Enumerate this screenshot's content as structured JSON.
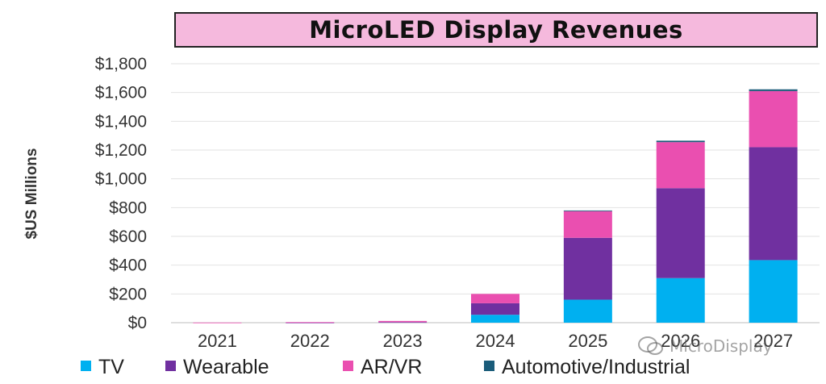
{
  "chart_data": {
    "type": "bar",
    "stacked": true,
    "title": "MicroLED Display Revenues",
    "xlabel": "",
    "ylabel": "$US Millions",
    "ylim": [
      0,
      1800
    ],
    "yticks": [
      0,
      200,
      400,
      600,
      800,
      1000,
      1200,
      1400,
      1600,
      1800
    ],
    "ytick_labels": [
      "$0",
      "$200",
      "$400",
      "$600",
      "$800",
      "$1,000",
      "$1,200",
      "$1,400",
      "$1,600",
      "$1,800"
    ],
    "categories": [
      "2021",
      "2022",
      "2023",
      "2024",
      "2025",
      "2026",
      "2027"
    ],
    "series": [
      {
        "name": "TV",
        "color": "#00b0f0",
        "values": [
          0,
          0,
          0,
          55,
          160,
          310,
          435
        ]
      },
      {
        "name": "Wearable",
        "color": "#7030a0",
        "values": [
          0,
          1,
          4,
          80,
          430,
          625,
          785
        ]
      },
      {
        "name": "AR/VR",
        "color": "#ea4fb0",
        "values": [
          1,
          3,
          8,
          65,
          185,
          320,
          390
        ]
      },
      {
        "name": "Automotive/Industrial",
        "color": "#1a5c7a",
        "values": [
          0,
          0,
          0,
          0,
          5,
          10,
          12
        ]
      }
    ],
    "grid": true,
    "legend": "bottom"
  },
  "watermark": "MicroDisplay"
}
